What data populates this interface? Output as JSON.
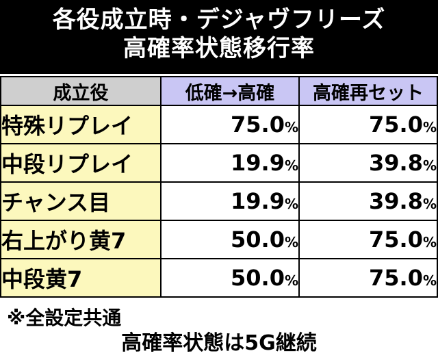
{
  "title": {
    "line1": "各役成立時・デジャヴフリーズ",
    "line2": "高確率状態移行率"
  },
  "table": {
    "headers": [
      "成立役",
      "低確→高確",
      "高確再セット"
    ],
    "rows": [
      {
        "role": "特殊リプレイ",
        "low_to_high": "75.0",
        "high_reset": "75.0"
      },
      {
        "role": "中段リプレイ",
        "low_to_high": "19.9",
        "high_reset": "39.8"
      },
      {
        "role": "チャンス目",
        "low_to_high": "19.9",
        "high_reset": "39.8"
      },
      {
        "role": "右上がり黄7",
        "low_to_high": "50.0",
        "high_reset": "75.0"
      },
      {
        "role": "中段黄7",
        "low_to_high": "50.0",
        "high_reset": "75.0"
      }
    ],
    "unit": "%"
  },
  "note": "※全設定共通",
  "footer": "高確率状態は5G継続",
  "colors": {
    "title_bg": "#000000",
    "header_role_bg": "#cfcfcf",
    "header_rate_bg": "#c9c6f4",
    "role_cell_bg": "#fcf8bd"
  }
}
